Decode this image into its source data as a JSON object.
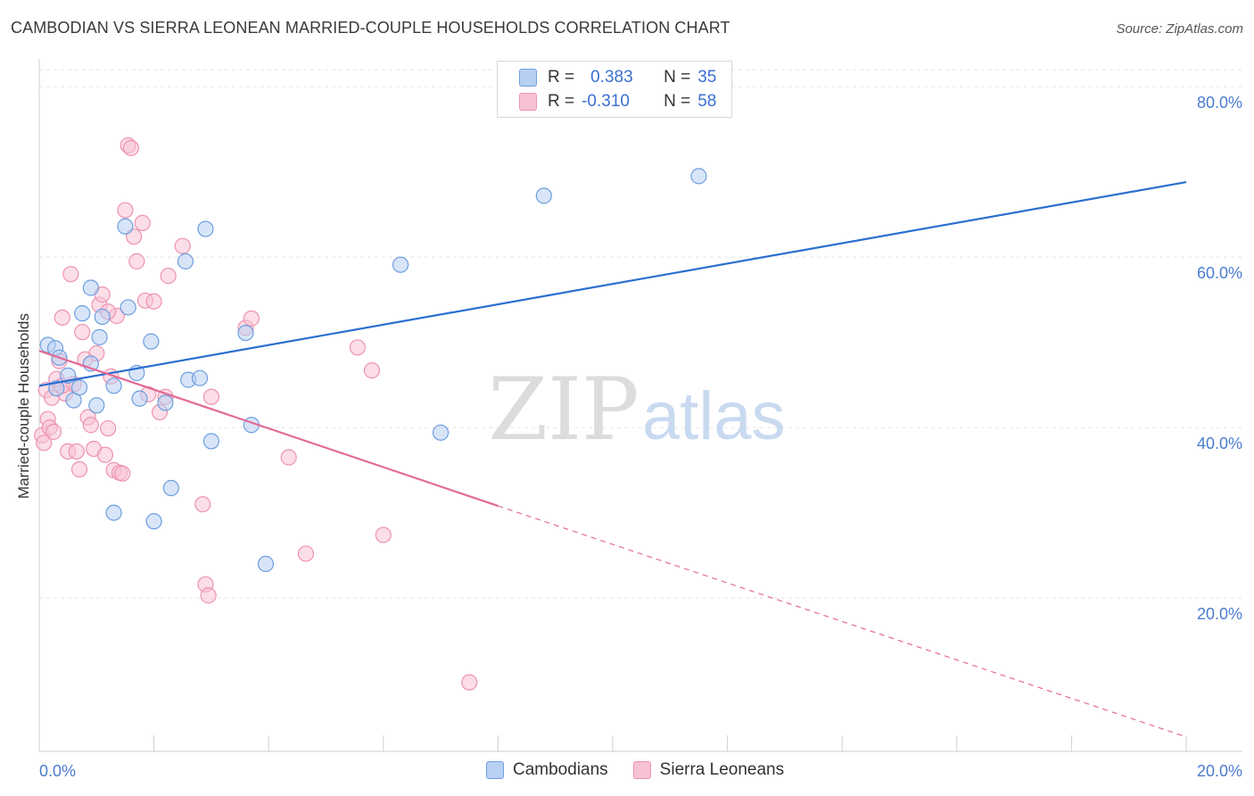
{
  "header": {
    "title": "CAMBODIAN VS SIERRA LEONEAN MARRIED-COUPLE HOUSEHOLDS CORRELATION CHART",
    "source": "Source: ZipAtlas.com"
  },
  "watermark": {
    "zip": "ZIP",
    "atlas": "atlas"
  },
  "legend": {
    "rows": [
      {
        "r_label": "R =",
        "r_value": "0.383",
        "n_label": "N =",
        "n_value": "35"
      },
      {
        "r_label": "R =",
        "r_value": "-0.310",
        "n_label": "N =",
        "n_value": "58"
      }
    ]
  },
  "bottom_legend": {
    "cambodians": "Cambodians",
    "sierra_leoneans": "Sierra Leoneans"
  },
  "colors": {
    "blue_fill": "#b8d0f2",
    "blue_stroke": "#6d9ee0",
    "blue_line": "#2a6fd0",
    "pink_fill": "#f7c3d4",
    "pink_stroke": "#ee93b0",
    "pink_line": "#e36a96",
    "tick_text": "#4a7ccf",
    "grid": "#e3e3e3"
  },
  "chart_data": {
    "type": "scatter",
    "title": "CAMBODIAN VS SIERRA LEONEAN MARRIED-COUPLE HOUSEHOLDS CORRELATION CHART",
    "xlabel": "",
    "ylabel": "Married-couple Households",
    "xlim": [
      0,
      20
    ],
    "ylim": [
      2,
      82
    ],
    "x_tick_labels": {
      "left": "0.0%",
      "right": "20.0%"
    },
    "y_ticks": [
      {
        "value": 20,
        "label": "20.0%"
      },
      {
        "value": 40,
        "label": "40.0%"
      },
      {
        "value": 60,
        "label": "60.0%"
      },
      {
        "value": 80,
        "label": "80.0%"
      }
    ],
    "grid": true,
    "series": [
      {
        "name": "Cambodians",
        "r": 0.383,
        "n": 35,
        "trend": {
          "x0": 0.0,
          "y0": 44.9,
          "x1": 20.0,
          "y1": 68.8
        },
        "points": [
          [
            0.15,
            49.7
          ],
          [
            0.28,
            49.3
          ],
          [
            0.35,
            48.2
          ],
          [
            0.3,
            44.6
          ],
          [
            0.5,
            46.1
          ],
          [
            0.6,
            43.2
          ],
          [
            0.75,
            53.4
          ],
          [
            0.7,
            44.7
          ],
          [
            0.9,
            47.5
          ],
          [
            0.9,
            56.4
          ],
          [
            1.0,
            42.6
          ],
          [
            1.05,
            50.6
          ],
          [
            1.1,
            53.0
          ],
          [
            1.3,
            44.9
          ],
          [
            1.5,
            63.6
          ],
          [
            1.55,
            54.1
          ],
          [
            1.7,
            46.4
          ],
          [
            1.75,
            43.4
          ],
          [
            1.95,
            50.1
          ],
          [
            2.0,
            29.0
          ],
          [
            2.2,
            42.9
          ],
          [
            2.3,
            32.9
          ],
          [
            2.55,
            59.5
          ],
          [
            2.6,
            45.6
          ],
          [
            2.8,
            45.8
          ],
          [
            2.9,
            63.3
          ],
          [
            3.0,
            38.4
          ],
          [
            3.6,
            51.1
          ],
          [
            3.7,
            40.3
          ],
          [
            3.95,
            24.0
          ],
          [
            6.3,
            59.1
          ],
          [
            7.0,
            39.4
          ],
          [
            8.8,
            67.2
          ],
          [
            11.5,
            69.5
          ],
          [
            1.3,
            30.0
          ]
        ]
      },
      {
        "name": "Sierra Leoneans",
        "r": -0.31,
        "n": 58,
        "trend": {
          "x0": 0.0,
          "y0": 49.0,
          "x1": 8.0,
          "y1": 30.8,
          "dash_x1": 20.0,
          "dash_y1": 3.7
        },
        "points": [
          [
            0.05,
            39.1
          ],
          [
            0.08,
            38.2
          ],
          [
            0.12,
            44.4
          ],
          [
            0.15,
            41.0
          ],
          [
            0.18,
            40.0
          ],
          [
            0.22,
            43.5
          ],
          [
            0.3,
            45.7
          ],
          [
            0.35,
            47.8
          ],
          [
            0.4,
            52.9
          ],
          [
            0.45,
            44.0
          ],
          [
            0.5,
            37.2
          ],
          [
            0.55,
            58.0
          ],
          [
            0.6,
            45.1
          ],
          [
            0.65,
            37.2
          ],
          [
            0.7,
            35.1
          ],
          [
            0.75,
            51.2
          ],
          [
            0.8,
            48.0
          ],
          [
            0.85,
            41.2
          ],
          [
            0.9,
            40.3
          ],
          [
            0.95,
            37.5
          ],
          [
            1.0,
            48.7
          ],
          [
            1.05,
            54.4
          ],
          [
            1.1,
            55.6
          ],
          [
            1.15,
            36.8
          ],
          [
            1.2,
            39.9
          ],
          [
            1.25,
            46.0
          ],
          [
            1.3,
            35.0
          ],
          [
            1.35,
            53.1
          ],
          [
            1.4,
            34.7
          ],
          [
            1.45,
            34.6
          ],
          [
            1.5,
            65.5
          ],
          [
            1.55,
            73.1
          ],
          [
            1.6,
            72.8
          ],
          [
            1.65,
            62.4
          ],
          [
            1.7,
            59.5
          ],
          [
            1.8,
            64.0
          ],
          [
            1.85,
            54.9
          ],
          [
            1.9,
            43.9
          ],
          [
            2.0,
            54.8
          ],
          [
            2.1,
            41.8
          ],
          [
            2.2,
            43.6
          ],
          [
            2.25,
            57.8
          ],
          [
            2.5,
            61.3
          ],
          [
            2.85,
            31.0
          ],
          [
            2.9,
            21.6
          ],
          [
            2.95,
            20.3
          ],
          [
            3.0,
            43.6
          ],
          [
            3.6,
            51.7
          ],
          [
            3.7,
            52.8
          ],
          [
            4.35,
            36.5
          ],
          [
            4.65,
            25.2
          ],
          [
            5.55,
            49.4
          ],
          [
            5.8,
            46.7
          ],
          [
            6.0,
            27.4
          ],
          [
            7.5,
            10.1
          ],
          [
            0.25,
            39.5
          ],
          [
            0.4,
            44.9
          ],
          [
            1.2,
            53.6
          ]
        ]
      }
    ]
  }
}
